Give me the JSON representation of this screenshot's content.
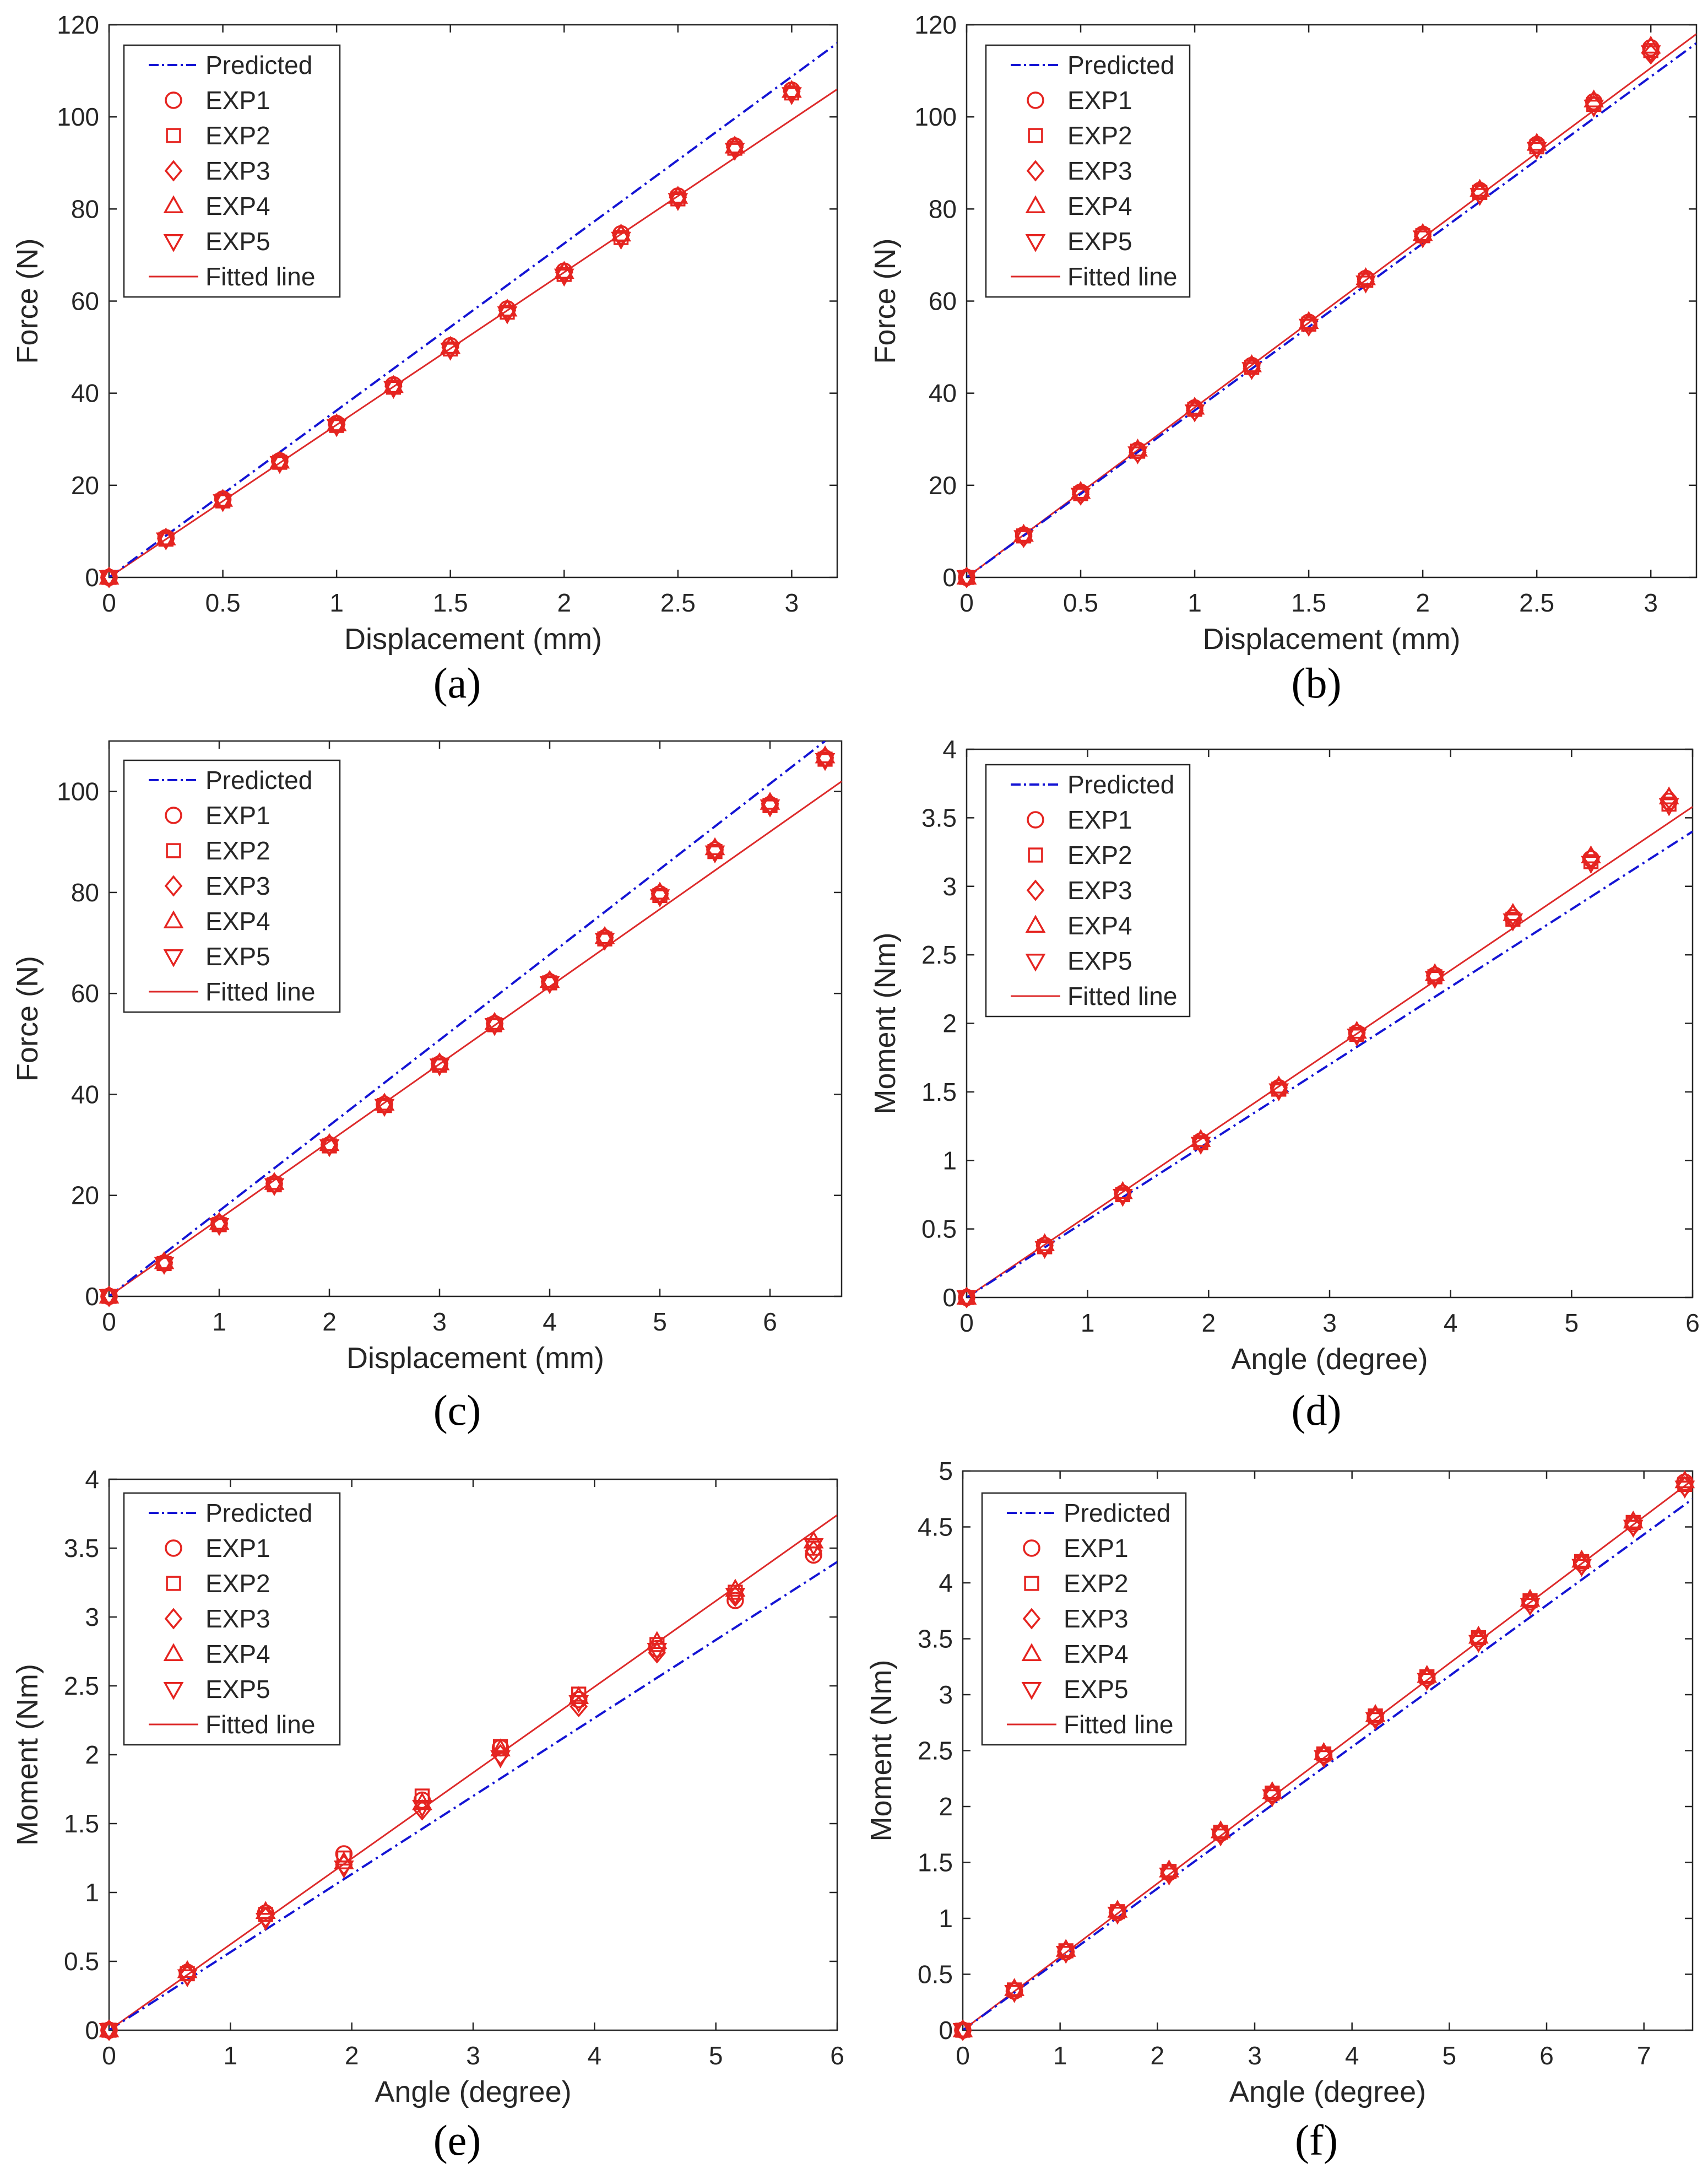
{
  "colors": {
    "predicted": "#1414d4",
    "exp": "#e52420",
    "axis": "#262626",
    "fit": "#dd2a2a"
  },
  "legend_labels": [
    "Predicted",
    "EXP1",
    "EXP2",
    "EXP3",
    "EXP4",
    "EXP5",
    "Fitted line"
  ],
  "chart_data": [
    {
      "id": "a",
      "caption": "(a)",
      "type": "scatter",
      "xlabel": "Displacement (mm)",
      "ylabel": "Force (N)",
      "xlim": [
        0,
        3.2
      ],
      "ylim": [
        0,
        120
      ],
      "xticks": [
        0,
        0.5,
        1,
        1.5,
        2,
        2.5,
        3
      ],
      "xtick_labels": [
        "0",
        "0.5",
        "1",
        "1.5",
        "2",
        "2.5",
        "3"
      ],
      "yticks": [
        0,
        20,
        40,
        60,
        80,
        100,
        120
      ],
      "ytick_labels": [
        "0",
        "20",
        "40",
        "60",
        "80",
        "100",
        "120"
      ],
      "predicted": {
        "x": [
          0,
          3.2
        ],
        "y": [
          0,
          116
        ]
      },
      "fitted": {
        "x": [
          0,
          3.2
        ],
        "y": [
          0,
          106
        ]
      },
      "x": [
        0,
        0.25,
        0.5,
        0.75,
        1,
        1.25,
        1.5,
        1.75,
        2,
        2.25,
        2.5,
        2.75,
        3
      ],
      "series": [
        {
          "name": "EXP1",
          "values": [
            0,
            8.6,
            17,
            25.3,
            33.4,
            41.8,
            50.3,
            58.3,
            66.5,
            74.6,
            82.8,
            93.7,
            105.8
          ]
        },
        {
          "name": "EXP2",
          "values": [
            0,
            8.3,
            16.6,
            25,
            33,
            41.3,
            49.6,
            57.6,
            65.8,
            73.8,
            82.2,
            93.2,
            105.2
          ]
        },
        {
          "name": "EXP3",
          "values": [
            0,
            8.4,
            16.8,
            25.1,
            33.2,
            41.5,
            49.9,
            58,
            66.2,
            74.2,
            82.5,
            93.4,
            105.5
          ]
        },
        {
          "name": "EXP4",
          "values": [
            0,
            8.5,
            16.9,
            25.2,
            33.3,
            41.6,
            50.1,
            58.2,
            66.4,
            74.5,
            82.7,
            93.6,
            105.7
          ]
        },
        {
          "name": "EXP5",
          "values": [
            0,
            8.2,
            16.5,
            24.8,
            32.8,
            41.1,
            49.4,
            57.3,
            65.5,
            73.5,
            81.9,
            92.8,
            104.9
          ]
        }
      ]
    },
    {
      "id": "b",
      "caption": "(b)",
      "type": "scatter",
      "xlabel": "Displacement (mm)",
      "ylabel": "Force (N)",
      "xlim": [
        0,
        3.2
      ],
      "ylim": [
        0,
        120
      ],
      "xticks": [
        0,
        0.5,
        1,
        1.5,
        2,
        2.5,
        3
      ],
      "xtick_labels": [
        "0",
        "0.5",
        "1",
        "1.5",
        "2",
        "2.5",
        "3"
      ],
      "yticks": [
        0,
        20,
        40,
        60,
        80,
        100,
        120
      ],
      "ytick_labels": [
        "0",
        "20",
        "40",
        "60",
        "80",
        "100",
        "120"
      ],
      "predicted": {
        "x": [
          0,
          3.2
        ],
        "y": [
          0,
          116
        ]
      },
      "fitted": {
        "x": [
          0,
          3.2
        ],
        "y": [
          0,
          118
        ]
      },
      "x": [
        0,
        0.25,
        0.5,
        0.75,
        1,
        1.25,
        1.5,
        1.75,
        2,
        2.25,
        2.5,
        2.75,
        3
      ],
      "series": [
        {
          "name": "EXP1",
          "values": [
            0,
            9.2,
            18.5,
            27.6,
            36.8,
            46,
            55.4,
            64.9,
            74.5,
            84,
            94,
            103.3,
            115
          ]
        },
        {
          "name": "EXP2",
          "values": [
            0,
            9,
            18.2,
            27.4,
            36.5,
            45.6,
            55,
            64.5,
            74.2,
            83.6,
            93.5,
            102.7,
            114.4
          ]
        },
        {
          "name": "EXP3",
          "values": [
            0,
            8.8,
            18,
            27.1,
            36.2,
            45.4,
            54.8,
            64.3,
            74,
            83.3,
            93.3,
            102.5,
            113.7
          ]
        },
        {
          "name": "EXP4",
          "values": [
            0,
            9.3,
            18.6,
            27.8,
            36.9,
            46.1,
            55.5,
            65,
            74.6,
            84.2,
            94.2,
            103.6,
            115.3
          ]
        },
        {
          "name": "EXP5",
          "values": [
            0,
            8.7,
            17.9,
            26.9,
            36,
            45.2,
            54.6,
            64,
            73.8,
            83,
            93,
            102.2,
            114
          ]
        }
      ]
    },
    {
      "id": "c",
      "caption": "(c)",
      "type": "scatter",
      "xlabel": "Displacement (mm)",
      "ylabel": "Force (N)",
      "xlim": [
        0,
        6.65
      ],
      "ylim": [
        0,
        110
      ],
      "xticks": [
        0,
        1,
        2,
        3,
        4,
        5,
        6
      ],
      "xtick_labels": [
        "0",
        "1",
        "2",
        "3",
        "4",
        "5",
        "6"
      ],
      "yticks": [
        0,
        20,
        40,
        60,
        80,
        100
      ],
      "ytick_labels": [
        "0",
        "20",
        "40",
        "60",
        "80",
        "100"
      ],
      "predicted": {
        "x": [
          0,
          6.5
        ],
        "y": [
          0,
          110
        ]
      },
      "fitted": {
        "x": [
          0,
          6.65
        ],
        "y": [
          0,
          102
        ]
      },
      "x": [
        0,
        0.5,
        1,
        1.5,
        2,
        2.5,
        3,
        3.5,
        4,
        4.5,
        5,
        5.5,
        6,
        6.5
      ],
      "series": [
        {
          "name": "EXP1",
          "values": [
            0,
            6.6,
            14.4,
            22.3,
            30,
            38,
            46,
            54,
            62.3,
            71,
            79.7,
            88.4,
            97.4,
            106.6
          ]
        },
        {
          "name": "EXP2",
          "values": [
            0,
            6.5,
            14.2,
            22.1,
            29.8,
            37.8,
            45.8,
            53.8,
            62.1,
            70.8,
            79.4,
            88.1,
            97.2,
            106.4
          ]
        },
        {
          "name": "EXP3",
          "values": [
            0,
            6.7,
            14.5,
            22.4,
            30.1,
            38.1,
            46.1,
            54.1,
            62.4,
            71.1,
            79.8,
            88.6,
            97.6,
            106.8
          ]
        },
        {
          "name": "EXP4",
          "values": [
            0,
            6.8,
            14.6,
            22.5,
            30.2,
            38.2,
            46.2,
            54.2,
            62.5,
            71.2,
            80,
            88.8,
            97.8,
            107
          ]
        },
        {
          "name": "EXP5",
          "values": [
            0,
            6.4,
            14.1,
            22,
            29.7,
            37.7,
            45.7,
            53.7,
            62,
            70.6,
            79.2,
            87.9,
            97,
            106.2
          ]
        }
      ]
    },
    {
      "id": "d",
      "caption": "(d)",
      "type": "scatter",
      "xlabel": "Angle (degree)",
      "ylabel": "Moment (Nm)",
      "xlim": [
        0,
        6
      ],
      "ylim": [
        0,
        4
      ],
      "xticks": [
        0,
        1,
        2,
        3,
        4,
        5,
        6
      ],
      "xtick_labels": [
        "0",
        "1",
        "2",
        "3",
        "4",
        "5",
        "6"
      ],
      "yticks": [
        0,
        0.5,
        1,
        1.5,
        2,
        2.5,
        3,
        3.5,
        4
      ],
      "ytick_labels": [
        "0",
        "0.5",
        "1",
        "1.5",
        "2",
        "2.5",
        "3",
        "3.5",
        "4"
      ],
      "predicted": {
        "x": [
          0,
          6
        ],
        "y": [
          0,
          3.4
        ]
      },
      "fitted": {
        "x": [
          0,
          6
        ],
        "y": [
          0,
          3.58
        ]
      },
      "x": [
        0,
        0.645,
        1.29,
        1.935,
        2.58,
        3.225,
        3.87,
        4.515,
        5.16,
        5.805
      ],
      "series": [
        {
          "name": "EXP1",
          "values": [
            0,
            0.38,
            0.76,
            1.14,
            1.53,
            1.93,
            2.35,
            2.77,
            3.2,
            3.62
          ]
        },
        {
          "name": "EXP2",
          "values": [
            0,
            0.37,
            0.75,
            1.13,
            1.52,
            1.92,
            2.34,
            2.76,
            3.18,
            3.6
          ]
        },
        {
          "name": "EXP3",
          "values": [
            0,
            0.38,
            0.76,
            1.14,
            1.53,
            1.93,
            2.35,
            2.79,
            3.21,
            3.64
          ]
        },
        {
          "name": "EXP4",
          "values": [
            0,
            0.39,
            0.77,
            1.15,
            1.54,
            1.94,
            2.36,
            2.8,
            3.22,
            3.65
          ]
        },
        {
          "name": "EXP5",
          "values": [
            0,
            0.36,
            0.74,
            1.12,
            1.51,
            1.91,
            2.33,
            2.75,
            3.17,
            3.59
          ]
        }
      ]
    },
    {
      "id": "e",
      "caption": "(e)",
      "type": "scatter",
      "xlabel": "Angle (degree)",
      "ylabel": "Moment (Nm)",
      "xlim": [
        0,
        6
      ],
      "ylim": [
        0,
        4
      ],
      "xticks": [
        0,
        1,
        2,
        3,
        4,
        5,
        6
      ],
      "xtick_labels": [
        "0",
        "1",
        "2",
        "3",
        "4",
        "5",
        "6"
      ],
      "yticks": [
        0,
        0.5,
        1,
        1.5,
        2,
        2.5,
        3,
        3.5,
        4
      ],
      "ytick_labels": [
        "0",
        "0.5",
        "1",
        "1.5",
        "2",
        "2.5",
        "3",
        "3.5",
        "4"
      ],
      "predicted": {
        "x": [
          0,
          6
        ],
        "y": [
          0,
          3.4
        ]
      },
      "fitted": {
        "x": [
          0,
          6
        ],
        "y": [
          0,
          3.74
        ]
      },
      "x": [
        0,
        0.645,
        1.29,
        1.935,
        2.58,
        3.225,
        3.87,
        4.515,
        5.16,
        5.805
      ],
      "series": [
        {
          "name": "EXP1",
          "values": [
            0,
            0.42,
            0.85,
            1.28,
            1.67,
            2.05,
            2.4,
            2.77,
            3.12,
            3.45
          ]
        },
        {
          "name": "EXP2",
          "values": [
            0,
            0.41,
            0.84,
            1.25,
            1.7,
            2.06,
            2.44,
            2.8,
            3.18,
            3.5
          ]
        },
        {
          "name": "EXP3",
          "values": [
            0,
            0.4,
            0.82,
            1.2,
            1.6,
            2.0,
            2.35,
            2.74,
            3.15,
            3.48
          ]
        },
        {
          "name": "EXP4",
          "values": [
            0,
            0.43,
            0.86,
            1.22,
            1.65,
            2.04,
            2.42,
            2.82,
            3.2,
            3.55
          ]
        },
        {
          "name": "EXP5",
          "values": [
            0,
            0.39,
            0.8,
            1.18,
            1.62,
            1.98,
            2.38,
            2.76,
            3.16,
            3.52
          ]
        }
      ]
    },
    {
      "id": "f",
      "caption": "(f)",
      "type": "scatter",
      "xlabel": "Angle (degree)",
      "ylabel": "Moment (Nm)",
      "xlim": [
        0,
        7.5
      ],
      "ylim": [
        0,
        5
      ],
      "xticks": [
        0,
        1,
        2,
        3,
        4,
        5,
        6,
        7
      ],
      "xtick_labels": [
        "0",
        "1",
        "2",
        "3",
        "4",
        "5",
        "6",
        "7"
      ],
      "yticks": [
        0,
        0.5,
        1,
        1.5,
        2,
        2.5,
        3,
        3.5,
        4,
        4.5,
        5
      ],
      "ytick_labels": [
        "0",
        "0.5",
        "1",
        "1.5",
        "2",
        "2.5",
        "3",
        "3.5",
        "4",
        "4.5",
        "5"
      ],
      "predicted": {
        "x": [
          0,
          7.5
        ],
        "y": [
          0,
          4.75
        ]
      },
      "fitted": {
        "x": [
          0,
          7.5
        ],
        "y": [
          0,
          4.92
        ]
      },
      "x": [
        0,
        0.53,
        1.06,
        1.59,
        2.12,
        2.65,
        3.18,
        3.71,
        4.24,
        4.77,
        5.3,
        5.83,
        6.36,
        6.89,
        7.42
      ],
      "series": [
        {
          "name": "EXP1",
          "values": [
            0,
            0.35,
            0.7,
            1.05,
            1.41,
            1.76,
            2.11,
            2.46,
            2.8,
            3.15,
            3.5,
            3.83,
            4.18,
            4.53,
            4.9
          ]
        },
        {
          "name": "EXP2",
          "values": [
            0,
            0.36,
            0.71,
            1.06,
            1.42,
            1.77,
            2.12,
            2.47,
            2.81,
            3.16,
            3.51,
            3.84,
            4.19,
            4.54,
            4.88
          ]
        },
        {
          "name": "EXP3",
          "values": [
            0,
            0.35,
            0.7,
            1.05,
            1.4,
            1.75,
            2.1,
            2.45,
            2.79,
            3.14,
            3.48,
            3.81,
            4.16,
            4.51,
            4.86
          ]
        },
        {
          "name": "EXP4",
          "values": [
            0,
            0.37,
            0.72,
            1.07,
            1.43,
            1.78,
            2.13,
            2.48,
            2.82,
            3.17,
            3.52,
            3.85,
            4.2,
            4.55,
            4.91
          ]
        },
        {
          "name": "EXP5",
          "values": [
            0,
            0.34,
            0.69,
            1.04,
            1.39,
            1.74,
            2.09,
            2.44,
            2.78,
            3.13,
            3.47,
            3.8,
            4.15,
            4.5,
            4.85
          ]
        }
      ]
    }
  ]
}
